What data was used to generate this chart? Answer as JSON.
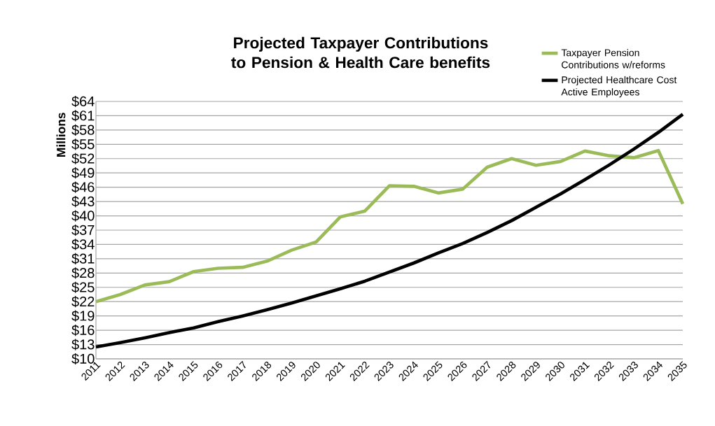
{
  "chart_data": {
    "type": "line",
    "title": "Projected Taxpayer Contributions to Pension & Health Care benefits",
    "ylabel": "Millions",
    "categories": [
      "2011",
      "2012",
      "2013",
      "2014",
      "2015",
      "2016",
      "2017",
      "2018",
      "2019",
      "2020",
      "2021",
      "2022",
      "2023",
      "2024",
      "2025",
      "2026",
      "2027",
      "2028",
      "2029",
      "2030",
      "2031",
      "2032",
      "2033",
      "2034",
      "2035"
    ],
    "series": [
      {
        "name": "Taxpayer Pension Contributions w/reforms",
        "color": "#9bbb59",
        "values": [
          22,
          23.5,
          25.5,
          26.2,
          28.3,
          29,
          29.2,
          30.5,
          32.8,
          34.5,
          39.8,
          41,
          46.3,
          46.2,
          44.8,
          45.6,
          50.2,
          52,
          50.6,
          51.4,
          53.6,
          52.6,
          52.2,
          53.7,
          42.5
        ]
      },
      {
        "name": "Projected Healthcare Cost Active Employees",
        "color": "#000000",
        "values": [
          12.5,
          13.4,
          14.4,
          15.5,
          16.5,
          17.8,
          19,
          20.3,
          21.7,
          23.2,
          24.7,
          26.3,
          28.2,
          30.1,
          32.2,
          34.2,
          36.5,
          39,
          41.8,
          44.6,
          47.6,
          50.7,
          54,
          57.5,
          61.3
        ]
      }
    ],
    "ylim": [
      10,
      64
    ],
    "yticks": [
      {
        "value": 10,
        "label": "$10"
      },
      {
        "value": 13,
        "label": "$13"
      },
      {
        "value": 16,
        "label": "$16"
      },
      {
        "value": 19,
        "label": "$19"
      },
      {
        "value": 22,
        "label": "$22"
      },
      {
        "value": 25,
        "label": "$25"
      },
      {
        "value": 28,
        "label": "$28"
      },
      {
        "value": 31,
        "label": "$31"
      },
      {
        "value": 34,
        "label": "$34"
      },
      {
        "value": 37,
        "label": "$37"
      },
      {
        "value": 40,
        "label": "$40"
      },
      {
        "value": 43,
        "label": "$43"
      },
      {
        "value": 46,
        "label": "$46"
      },
      {
        "value": 49,
        "label": "$49"
      },
      {
        "value": 52,
        "label": "$52"
      },
      {
        "value": 55,
        "label": "$55"
      },
      {
        "value": 58,
        "label": "$58"
      },
      {
        "value": 61,
        "label": "$61"
      },
      {
        "value": 64,
        "label": "$64"
      }
    ],
    "grid": "y",
    "legend": "top right"
  }
}
